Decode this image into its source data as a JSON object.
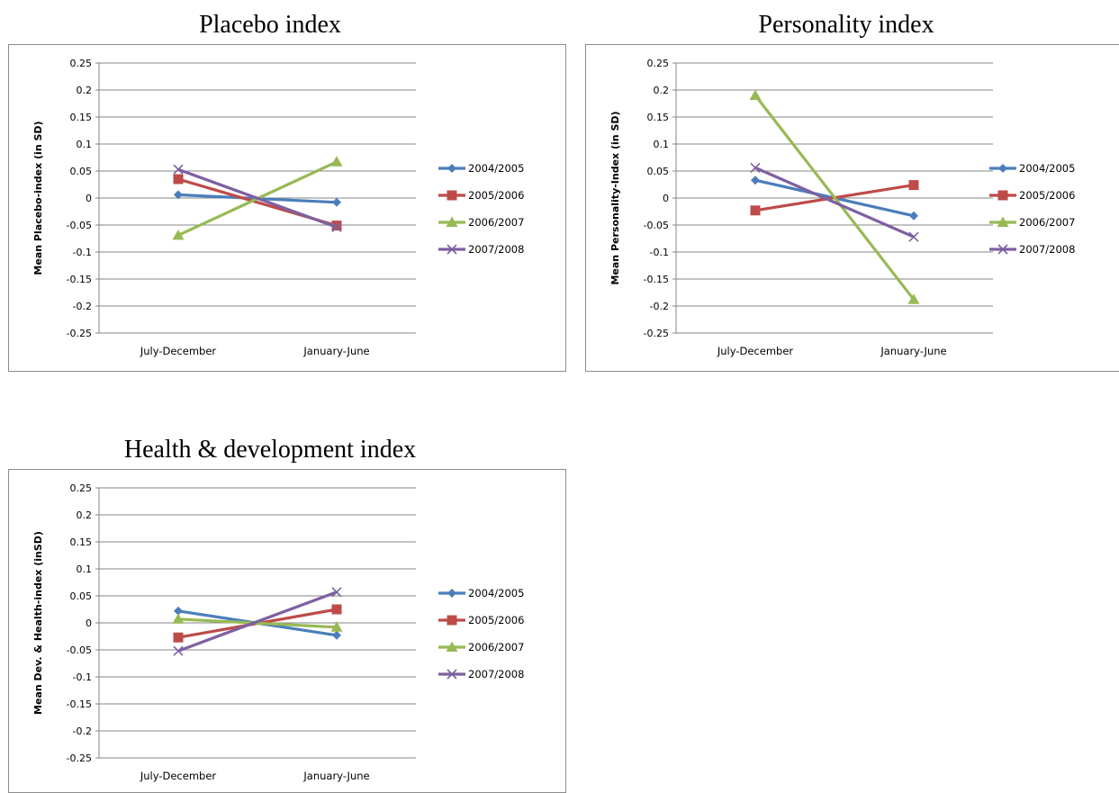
{
  "colors": {
    "2004/2005": "#4a7ebb",
    "2005/2006": "#be4b48",
    "2006/2007": "#98b954",
    "2007/2008": "#7d60a0"
  },
  "chart_data": [
    {
      "type": "line",
      "title": "Placebo index",
      "ylabel": "Mean Placebo-index  (in SD)",
      "categories": [
        "July-December",
        "January-June"
      ],
      "ylim": [
        -0.25,
        0.25
      ],
      "yticks": [
        "0.25",
        "0.2",
        "0.15",
        "0.1",
        "0.05",
        "0",
        "-0.05",
        "-0.1",
        "-0.15",
        "-0.2",
        "-0.25"
      ],
      "grid": true,
      "legend": "right",
      "series": [
        {
          "name": "2004/2005",
          "marker": "diamond",
          "values": [
            0.006,
            -0.008
          ]
        },
        {
          "name": "2005/2006",
          "marker": "square",
          "values": [
            0.035,
            -0.051
          ]
        },
        {
          "name": "2006/2007",
          "marker": "triangle",
          "values": [
            -0.069,
            0.067
          ]
        },
        {
          "name": "2007/2008",
          "marker": "x",
          "values": [
            0.053,
            -0.054
          ]
        }
      ]
    },
    {
      "type": "line",
      "title": "Personality index",
      "ylabel": "Mean Personality-Index  (in SD)",
      "categories": [
        "July-December",
        "January-June"
      ],
      "ylim": [
        -0.25,
        0.25
      ],
      "yticks": [
        "0.25",
        "0.2",
        "0.15",
        "0.1",
        "0.05",
        "0",
        "-0.05",
        "-0.1",
        "-0.15",
        "-0.2",
        "-0.25"
      ],
      "grid": true,
      "legend": "right",
      "series": [
        {
          "name": "2004/2005",
          "marker": "diamond",
          "values": [
            0.033,
            -0.033
          ]
        },
        {
          "name": "2005/2006",
          "marker": "square",
          "values": [
            -0.023,
            0.024
          ]
        },
        {
          "name": "2006/2007",
          "marker": "triangle",
          "values": [
            0.19,
            -0.188
          ]
        },
        {
          "name": "2007/2008",
          "marker": "x",
          "values": [
            0.056,
            -0.072
          ]
        }
      ]
    },
    {
      "type": "line",
      "title": "Health & development index",
      "ylabel": "Mean Dev. & Health-index (inSD)",
      "categories": [
        "July-December",
        "January-June"
      ],
      "ylim": [
        -0.25,
        0.25
      ],
      "yticks": [
        "0.25",
        "0.2",
        "0.15",
        "0.1",
        "0.05",
        "0",
        "-0.05",
        "-0.1",
        "-0.15",
        "-0.2",
        "-0.25"
      ],
      "grid": true,
      "legend": "right",
      "series": [
        {
          "name": "2004/2005",
          "marker": "diamond",
          "values": [
            0.022,
            -0.023
          ]
        },
        {
          "name": "2005/2006",
          "marker": "square",
          "values": [
            -0.027,
            0.025
          ]
        },
        {
          "name": "2006/2007",
          "marker": "triangle",
          "values": [
            0.007,
            -0.008
          ]
        },
        {
          "name": "2007/2008",
          "marker": "x",
          "values": [
            -0.052,
            0.057
          ]
        }
      ]
    }
  ]
}
